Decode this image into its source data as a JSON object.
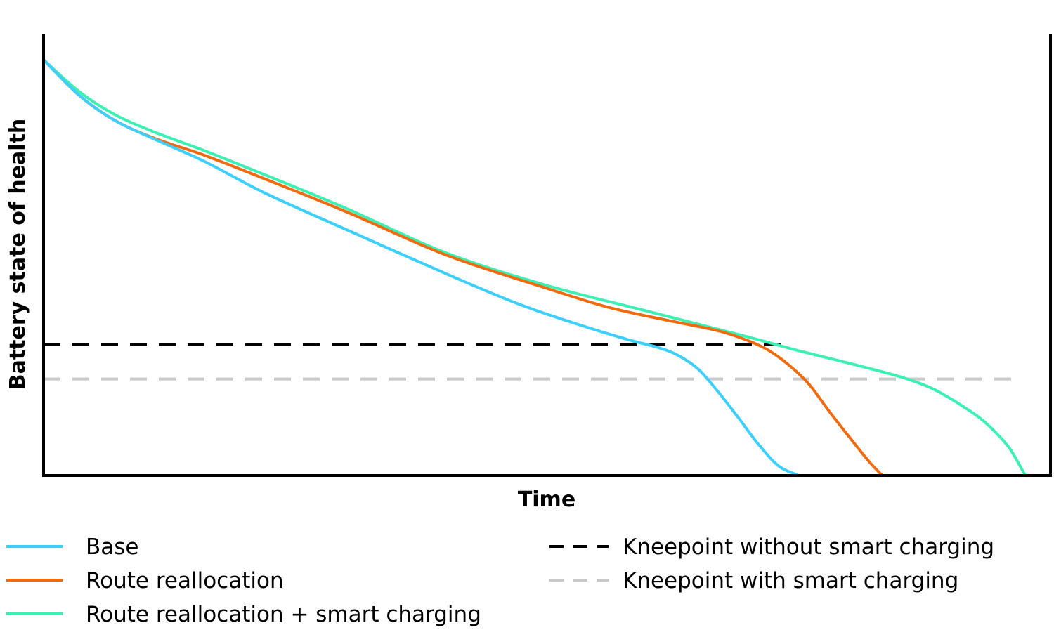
{
  "chart_data": {
    "type": "line",
    "title": "",
    "xlabel": "Time",
    "ylabel": "Battery state of health",
    "xlim": [
      0,
      100
    ],
    "ylim": [
      0,
      100
    ],
    "grid": false,
    "legend_placement": "bottom",
    "series": [
      {
        "name": "Base",
        "color": "#3ccfff",
        "x": [
          0,
          3.5,
          7,
          11,
          16,
          22,
          30,
          40,
          47,
          53,
          58,
          61,
          63,
          65,
          67,
          69,
          71,
          73,
          75
        ],
        "y": [
          100,
          91.5,
          85.5,
          80.9,
          75.5,
          67.9,
          59.2,
          48.5,
          41.4,
          36.4,
          32.7,
          30.8,
          28.9,
          25.6,
          20.1,
          13.9,
          7.5,
          2.3,
          0
        ]
      },
      {
        "name": "Route reallocation",
        "color": "#f06a0f",
        "x": [
          0,
          3.5,
          7,
          11,
          16,
          22,
          30,
          40,
          50,
          56,
          62,
          67,
          70,
          72,
          74,
          76,
          78,
          80,
          82,
          83.3
        ],
        "y": [
          100,
          91.5,
          85.5,
          81.1,
          77.0,
          71.3,
          63.5,
          53.0,
          45.0,
          40.5,
          37.3,
          34.8,
          32.4,
          30.1,
          26.6,
          22.0,
          15.5,
          9.3,
          3.3,
          0
        ]
      },
      {
        "name": "Route reallocation + smart charging",
        "color": "#3cf0b4",
        "x": [
          0,
          3.5,
          7,
          11,
          16,
          22,
          30,
          40,
          50,
          60,
          70,
          75,
          80,
          85,
          88,
          90,
          91.5,
          93,
          94.5,
          96,
          97.5
        ],
        "y": [
          100,
          92.4,
          86.9,
          82.6,
          78.1,
          72.3,
          64.3,
          53.5,
          45.7,
          39.5,
          33.3,
          30.0,
          27.0,
          23.8,
          21.2,
          18.6,
          16.3,
          13.8,
          10.5,
          6.3,
          0
        ]
      }
    ],
    "reference_lines": [
      {
        "name": "Kneepoint without smart charging",
        "color": "#000000",
        "y": 31.5,
        "x_start": 0,
        "x_end": 73.8,
        "dash": "dashed"
      },
      {
        "name": "Kneepoint with smart charging",
        "color": "#c8c8c8",
        "y": 23.2,
        "x_start": 0,
        "x_end": 96.3,
        "dash": "dashed"
      }
    ]
  }
}
